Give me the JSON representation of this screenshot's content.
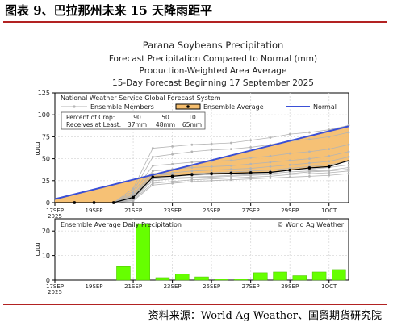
{
  "figure_title": "图表 9、巴拉那州未来 15 天降雨距平",
  "source": "资料来源：World Ag Weather、国贸期货研究院",
  "chart_data": [
    {
      "type": "line",
      "title": "Parana Soybeans Precipitation",
      "subtitle_lines": [
        "Forecast Precipitation Compared to Normal (mm)",
        "Production-Weighted Area Average",
        "15-Day Forecast Beginning 17 September 2025"
      ],
      "panel_label": "National Weather Service Global Forecast System",
      "legend": {
        "members": "Ensemble Members",
        "average": "Ensemble Average",
        "normal": "Normal"
      },
      "info_box": {
        "row1_label": "Percent of Crop:",
        "row1_values": [
          "90",
          "50",
          "10"
        ],
        "row2_label": "Receives at Least:",
        "row2_values": [
          "37mm",
          "48mm",
          "65mm"
        ]
      },
      "ylabel": "mm",
      "ylim": [
        0,
        125
      ],
      "yticks": [
        "0",
        "25",
        "50",
        "75",
        "100",
        "125"
      ],
      "xticks": [
        {
          "label": "17SEP",
          "label2": "2025",
          "day": 0
        },
        {
          "label": "19SEP",
          "day": 2
        },
        {
          "label": "21SEP",
          "day": 4
        },
        {
          "label": "23SEP",
          "day": 6
        },
        {
          "label": "25SEP",
          "day": 8
        },
        {
          "label": "27SEP",
          "day": 10
        },
        {
          "label": "29SEP",
          "day": 12
        },
        {
          "label": "1OCT",
          "day": 14
        }
      ],
      "xlim": [
        0,
        15
      ],
      "normal": [
        [
          0,
          4
        ],
        [
          15,
          87
        ]
      ],
      "ensemble_average": {
        "x": [
          0,
          1,
          2,
          3,
          4,
          5,
          6,
          7,
          8,
          9,
          10,
          11,
          12,
          13,
          14,
          15
        ],
        "y": [
          0,
          0,
          0,
          0,
          6,
          29,
          30,
          32,
          33,
          33.5,
          34,
          34.5,
          37,
          39.5,
          41,
          48
        ]
      },
      "ensemble_members": [
        [
          0,
          0,
          0,
          0,
          2,
          20,
          22,
          24,
          25,
          26,
          27,
          28,
          29,
          30,
          31,
          33
        ],
        [
          0,
          0,
          0,
          0,
          3,
          22,
          24,
          26,
          27,
          28,
          29,
          30,
          32,
          33,
          34,
          36
        ],
        [
          0,
          0,
          0,
          0,
          4,
          25,
          27,
          28,
          29,
          30,
          31,
          32,
          33,
          35,
          36,
          38
        ],
        [
          0,
          0,
          0,
          0,
          5,
          27,
          28,
          29,
          30,
          31,
          32,
          33,
          35,
          36,
          37,
          40
        ],
        [
          0,
          0,
          0,
          0,
          6,
          29,
          30,
          31,
          32,
          33,
          34,
          35,
          37,
          38,
          40,
          43
        ],
        [
          0,
          0,
          0,
          0,
          7,
          31,
          32,
          33,
          34,
          35,
          36,
          37,
          39,
          41,
          43,
          47
        ],
        [
          0,
          0,
          0,
          0,
          8,
          33,
          34,
          36,
          37,
          38,
          39,
          41,
          43,
          45,
          47,
          52
        ],
        [
          0,
          0,
          0,
          0,
          9,
          36,
          38,
          40,
          41,
          42,
          44,
          46,
          48,
          50,
          53,
          58
        ],
        [
          0,
          0,
          0,
          0,
          11,
          42,
          44,
          46,
          47,
          48,
          51,
          53,
          56,
          58,
          61,
          66
        ],
        [
          0,
          0,
          0,
          0,
          13,
          52,
          55,
          58,
          60,
          61,
          63,
          66,
          70,
          72,
          75,
          80
        ],
        [
          0,
          0,
          0,
          0,
          16,
          62,
          64,
          66,
          67,
          68,
          71,
          74,
          78,
          80,
          83,
          88
        ]
      ]
    },
    {
      "type": "bar",
      "title": "Ensemble Average Daily Precipitation",
      "credit": "© World Ag Weather",
      "ylabel": "mm",
      "ylim": [
        0,
        25
      ],
      "yticks": [
        "0",
        "10",
        "20"
      ],
      "xticks": [
        {
          "label": "17SEP",
          "label2": "2025",
          "day": 0
        },
        {
          "label": "19SEP",
          "day": 2
        },
        {
          "label": "21SEP",
          "day": 4
        },
        {
          "label": "23SEP",
          "day": 6
        },
        {
          "label": "25SEP",
          "day": 8
        },
        {
          "label": "27SEP",
          "day": 10
        },
        {
          "label": "29SEP",
          "day": 12
        },
        {
          "label": "1OCT",
          "day": 14
        }
      ],
      "x": [
        0,
        1,
        2,
        3,
        4,
        5,
        6,
        7,
        8,
        9,
        10,
        11,
        12,
        13,
        14,
        15
      ],
      "values": [
        0,
        0,
        0,
        0,
        5.5,
        23,
        1,
        2.5,
        1.3,
        0.5,
        0.5,
        3,
        3.3,
        1.8,
        3.3,
        4.3
      ],
      "bar_color": "#66ff00"
    }
  ],
  "colors": {
    "rule": "#b22222",
    "fill": "#f5be6e",
    "normal": "#3a4fd6",
    "average": "#000000",
    "members": "#b4b4b4",
    "bar": "#66ff00"
  }
}
